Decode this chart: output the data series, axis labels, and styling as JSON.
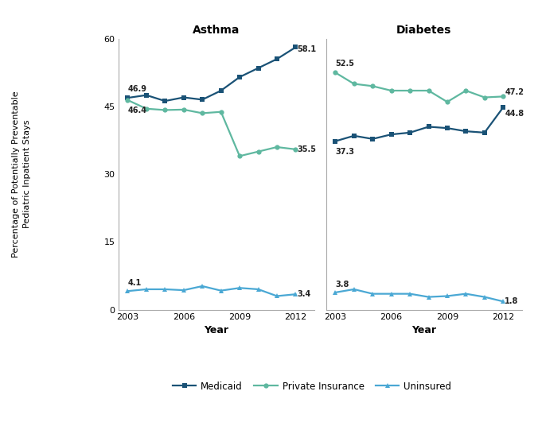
{
  "years": [
    2003,
    2004,
    2005,
    2006,
    2007,
    2008,
    2009,
    2010,
    2011,
    2012
  ],
  "asthma_medicaid": [
    46.9,
    47.5,
    46.2,
    47.0,
    46.5,
    48.5,
    51.5,
    53.5,
    55.5,
    58.1
  ],
  "asthma_private_insurance": [
    46.4,
    44.5,
    44.2,
    44.3,
    43.5,
    43.8,
    34.0,
    35.0,
    36.0,
    35.5
  ],
  "asthma_uninsured": [
    4.1,
    4.5,
    4.5,
    4.3,
    5.2,
    4.2,
    4.8,
    4.5,
    3.0,
    3.4
  ],
  "diabetes_medicaid": [
    37.3,
    38.5,
    37.8,
    38.8,
    39.2,
    40.5,
    40.2,
    39.5,
    39.2,
    44.8
  ],
  "diabetes_private_insurance": [
    52.5,
    50.0,
    49.5,
    48.5,
    48.5,
    48.5,
    46.0,
    48.5,
    47.0,
    47.2
  ],
  "diabetes_uninsured": [
    3.8,
    4.5,
    3.5,
    3.5,
    3.5,
    2.8,
    3.0,
    3.5,
    2.8,
    1.8
  ],
  "color_medicaid": "#1a5276",
  "color_private": "#5fb8a0",
  "color_uninsured": "#4aa8d4",
  "title_asthma": "Asthma",
  "title_diabetes": "Diabetes",
  "ylabel": "Percentage of Potentially Preventable\nPediatric Inpatient Stays",
  "xlabel": "Year",
  "legend_labels": [
    "Medicaid",
    "Private Insurance",
    "Uninsured"
  ]
}
